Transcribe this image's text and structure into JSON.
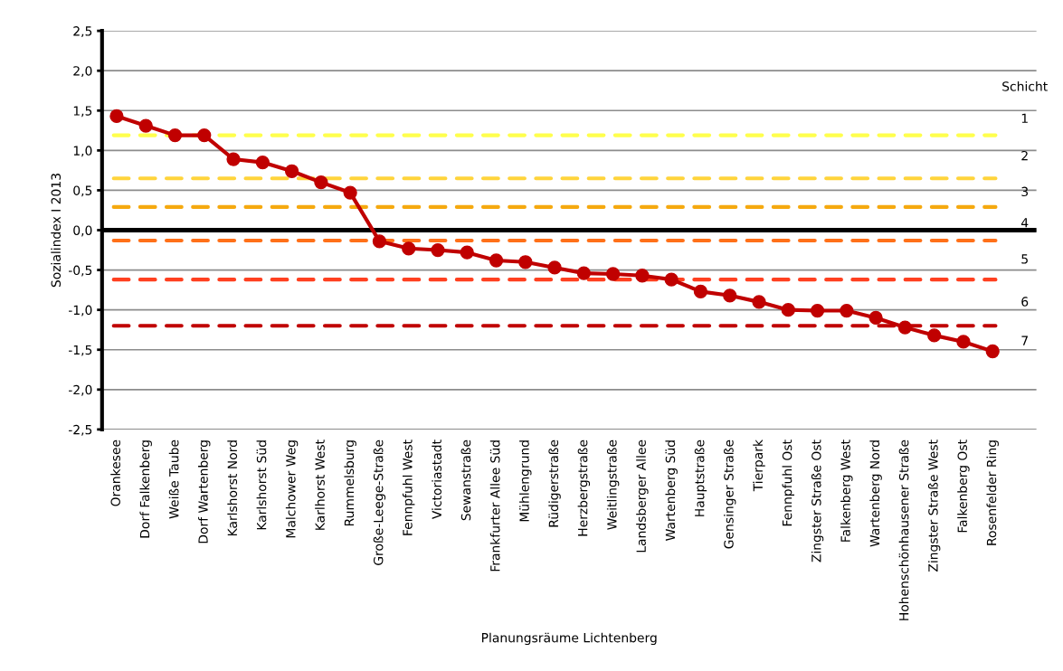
{
  "chart_data": {
    "type": "line",
    "xlabel": "Planungsräume Lichtenberg",
    "ylabel": "Sozialindex I 2013",
    "categories": [
      "Orankesee",
      "Dorf Falkenberg",
      "Weiße Taube",
      "Dorf Wartenberg",
      "Karlshorst Nord",
      "Karlshorst Süd",
      "Malchower Weg",
      "Karlhorst West",
      "Rummelsburg",
      "Große-Leege-Straße",
      "Fennpfuhl West",
      "Victoriastadt",
      "Sewanstraße",
      "Frankfurter Allee Süd",
      "Mühlengrund",
      "Rüdigerstraße",
      "Herzbergstraße",
      "Weitlingstraße",
      "Landsberger Allee",
      "Wartenberg Süd",
      "Hauptstraße",
      "Gensinger Straße",
      "Tierpark",
      "Fennpfuhl Ost",
      "Zingster Straße Ost",
      "Falkenberg West",
      "Wartenberg Nord",
      "Hohenschönhausener Straße",
      "Zingster Straße West",
      "Falkenberg Ost",
      "Rosenfelder Ring"
    ],
    "series": [
      {
        "color": "#c00000",
        "values": [
          1.43,
          1.31,
          1.19,
          1.19,
          0.89,
          0.85,
          0.74,
          0.6,
          0.47,
          -0.14,
          -0.23,
          -0.25,
          -0.28,
          -0.38,
          -0.4,
          -0.47,
          -0.54,
          -0.55,
          -0.57,
          -0.62,
          -0.77,
          -0.82,
          -0.9,
          -1.0,
          -1.01,
          -1.01,
          -1.1,
          -1.22,
          -1.32,
          -1.4,
          -1.52
        ]
      }
    ],
    "marker": "circle",
    "line_style": "solid",
    "grid": "y",
    "legend": false,
    "ylim": [
      -2.5,
      2.5
    ],
    "yticks": [
      {
        "value": -2.5,
        "label": "-2,5"
      },
      {
        "value": -2.0,
        "label": "-2,0"
      },
      {
        "value": -1.5,
        "label": "-1,5"
      },
      {
        "value": -1.0,
        "label": "-1,0"
      },
      {
        "value": -0.5,
        "label": "-0,5"
      },
      {
        "value": 0,
        "label": "0,0"
      },
      {
        "value": 0.5,
        "label": "0,5"
      },
      {
        "value": 1.0,
        "label": "1,0"
      },
      {
        "value": 1.5,
        "label": "1,5"
      },
      {
        "value": 2.0,
        "label": "2,0"
      },
      {
        "value": 2.5,
        "label": "2,5"
      }
    ],
    "ref_lines": [
      {
        "axis": "y",
        "value": 0,
        "color": "#000000",
        "line_style": "solid"
      },
      {
        "axis": "y",
        "value": 1.19,
        "color": "#ffff4d",
        "line_style": "dashed"
      },
      {
        "axis": "y",
        "value": 0.65,
        "color": "#ffd43b",
        "line_style": "dashed"
      },
      {
        "axis": "y",
        "value": 0.29,
        "color": "#f5a90f",
        "line_style": "dashed"
      },
      {
        "axis": "y",
        "value": -0.13,
        "color": "#ff7018",
        "line_style": "dashed"
      },
      {
        "axis": "y",
        "value": -0.62,
        "color": "#ff4020",
        "line_style": "dashed"
      },
      {
        "axis": "y",
        "value": -1.2,
        "color": "#c00000",
        "line_style": "dashed"
      }
    ],
    "annotations": [
      "Schicht",
      "1",
      "2",
      "3",
      "4",
      "5",
      "6",
      "7"
    ]
  }
}
